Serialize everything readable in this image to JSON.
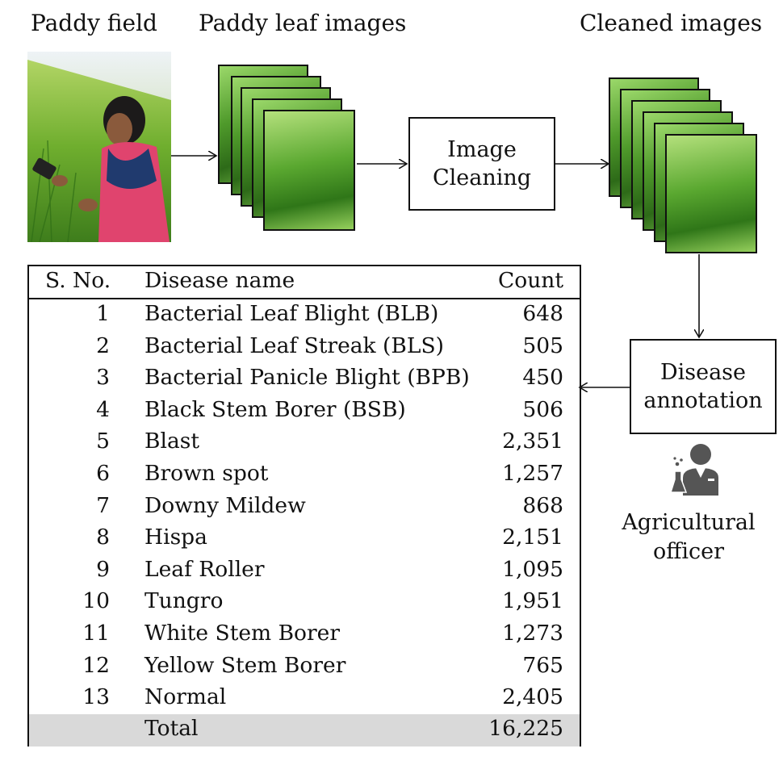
{
  "labels": {
    "paddy_field": "Paddy field",
    "leaf_images": "Paddy leaf images",
    "cleaned_images": "Cleaned images",
    "cleaning_line1": "Image",
    "cleaning_line2": "Cleaning",
    "annotation_line1": "Disease",
    "annotation_line2": "annotation",
    "officer_line1": "Agricultural",
    "officer_line2": "officer"
  },
  "table": {
    "headers": {
      "sno": "S. No.",
      "name": "Disease name",
      "count": "Count"
    },
    "rows": [
      {
        "sno": "1",
        "name": "Bacterial Leaf Blight (BLB)",
        "count": "648"
      },
      {
        "sno": "2",
        "name": "Bacterial Leaf Streak (BLS)",
        "count": "505"
      },
      {
        "sno": "3",
        "name": "Bacterial Panicle Blight (BPB)",
        "count": "450"
      },
      {
        "sno": "4",
        "name": "Black Stem Borer (BSB)",
        "count": "506"
      },
      {
        "sno": "5",
        "name": "Blast",
        "count": "2,351"
      },
      {
        "sno": "6",
        "name": "Brown spot",
        "count": "1,257"
      },
      {
        "sno": "7",
        "name": "Downy Mildew",
        "count": "868"
      },
      {
        "sno": "8",
        "name": "Hispa",
        "count": "2,151"
      },
      {
        "sno": "9",
        "name": "Leaf Roller",
        "count": "1,095"
      },
      {
        "sno": "10",
        "name": "Tungro",
        "count": "1,951"
      },
      {
        "sno": "11",
        "name": "White Stem Borer",
        "count": "1,273"
      },
      {
        "sno": "12",
        "name": "Yellow Stem Borer",
        "count": "765"
      },
      {
        "sno": "13",
        "name": "Normal",
        "count": "2,405"
      }
    ],
    "total": {
      "label": "Total",
      "count": "16,225"
    }
  },
  "colors": {
    "total_row_bg": "#d9d9d9",
    "line": "#111111",
    "icon": "#555555"
  },
  "icons": {
    "officer": "scientist-person-icon"
  }
}
